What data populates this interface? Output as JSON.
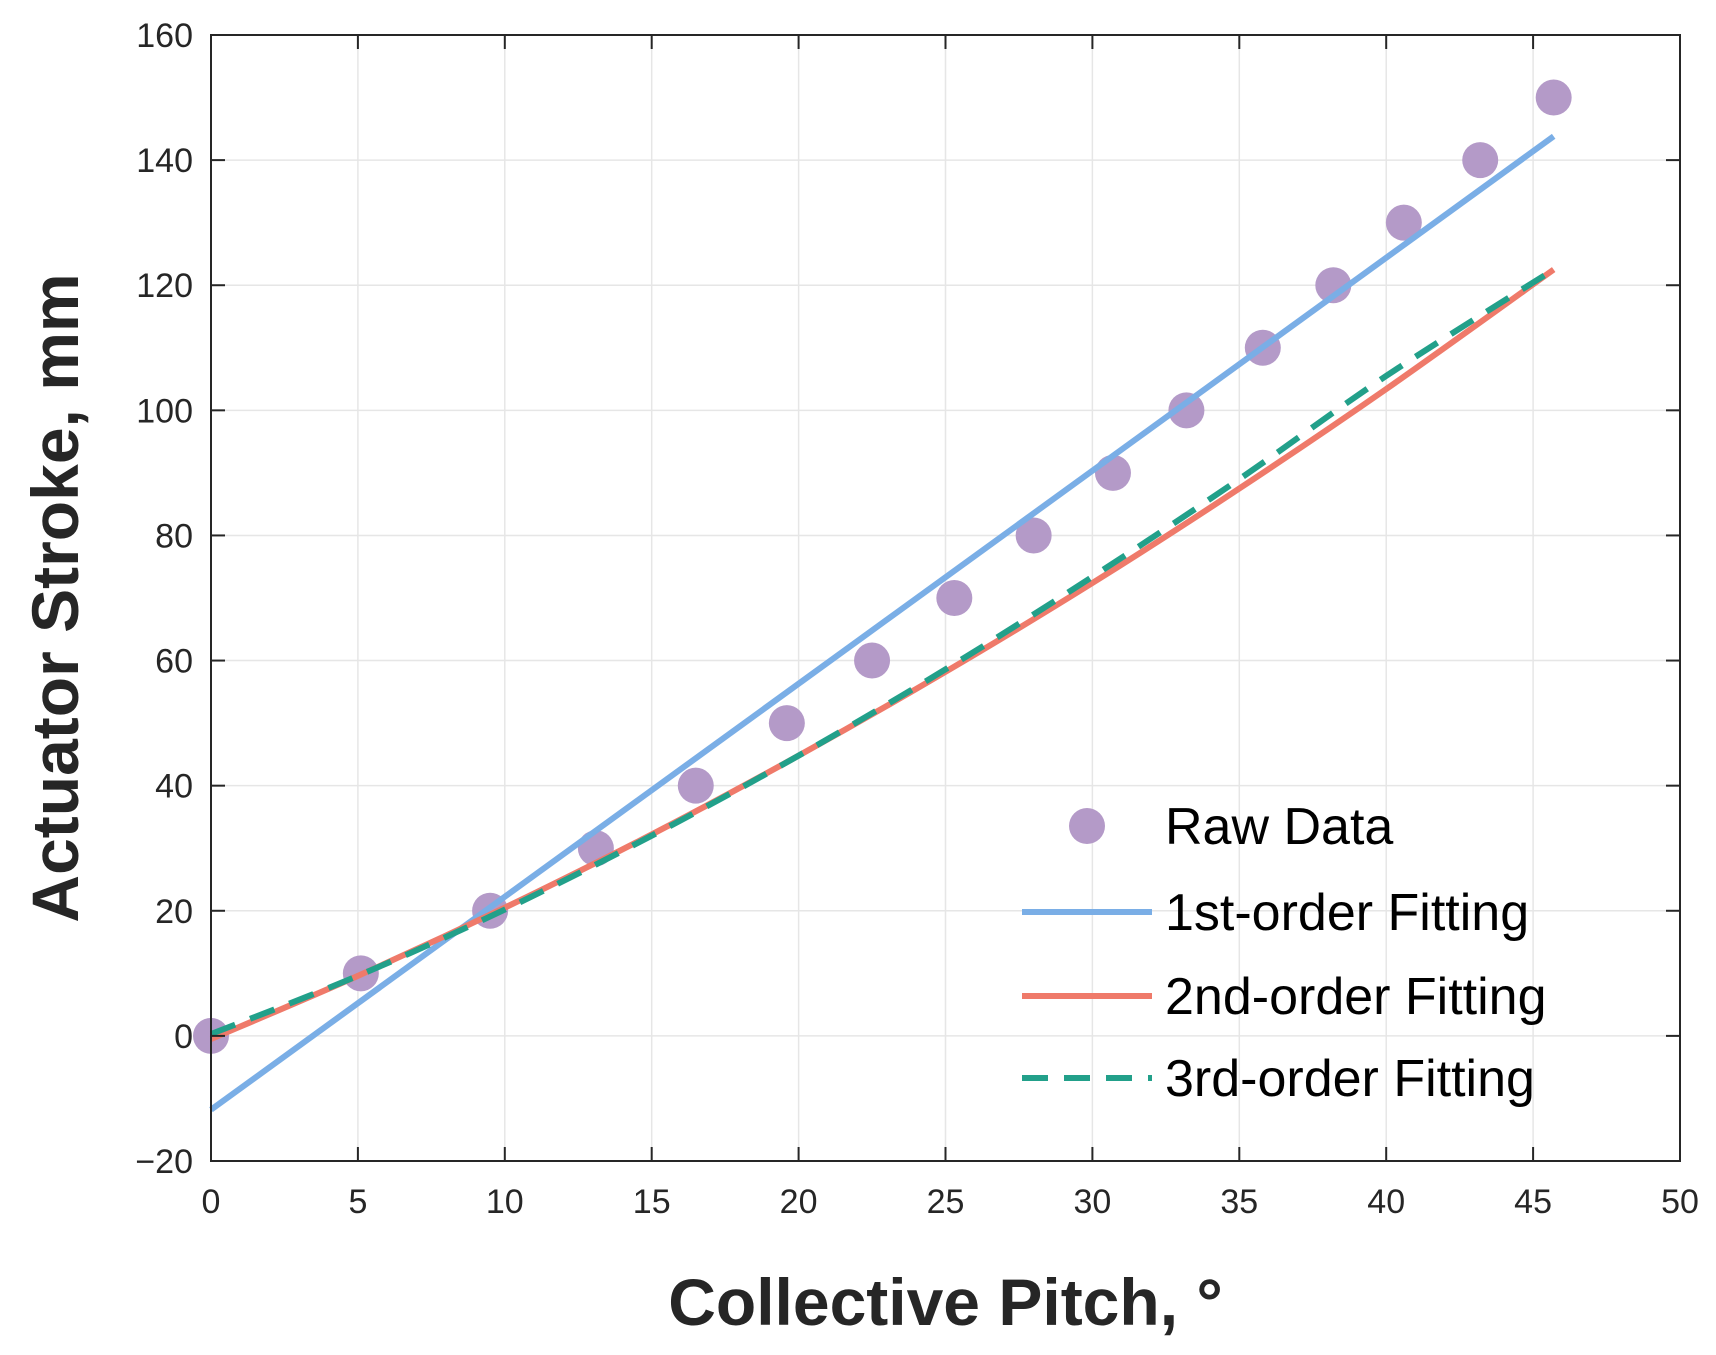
{
  "chart_data": {
    "type": "line",
    "title": "",
    "xlabel": "Collective Pitch, °",
    "ylabel": "Actuator Stroke, mm",
    "xlim": [
      0,
      50
    ],
    "ylim": [
      -20,
      160
    ],
    "xticks": [
      0,
      5,
      10,
      15,
      20,
      25,
      30,
      35,
      40,
      45,
      50
    ],
    "yticks": [
      -20,
      0,
      20,
      40,
      60,
      80,
      100,
      120,
      140,
      160
    ],
    "xtick_labels": [
      "0",
      "5",
      "10",
      "15",
      "20",
      "25",
      "30",
      "35",
      "40",
      "45",
      "50"
    ],
    "ytick_labels": [
      "−20",
      "0",
      "20",
      "40",
      "60",
      "80",
      "100",
      "120",
      "140",
      "160"
    ],
    "grid": true,
    "legend_position": "bottom-right",
    "series": [
      {
        "name": "Raw Data",
        "kind": "scatter",
        "color": "#b49ac8",
        "x": [
          0,
          5.1,
          9.5,
          13.1,
          16.5,
          19.6,
          22.5,
          25.3,
          28.0,
          30.7,
          33.2,
          35.8,
          38.2,
          40.6,
          43.2,
          45.7
        ],
        "y": [
          0,
          10,
          20,
          30,
          40,
          50,
          60,
          70,
          80,
          90,
          100,
          110,
          120,
          130,
          140,
          150
        ]
      },
      {
        "name": "1st-order Fitting",
        "kind": "line",
        "color": "#7aaee6",
        "dash": "solid",
        "x": [
          0,
          45.7
        ],
        "y": [
          -11.8,
          143.8
        ]
      },
      {
        "name": "2nd-order Fitting",
        "kind": "line",
        "color": "#ef7a6a",
        "dash": "solid",
        "x": [
          0,
          5,
          10,
          15,
          20,
          25,
          30,
          35,
          40,
          45.7
        ],
        "y": [
          -0.5,
          9.6,
          20.5,
          32.2,
          44.8,
          58.2,
          72.4,
          87.5,
          103.4,
          122.5
        ]
      },
      {
        "name": "3rd-order Fitting",
        "kind": "line",
        "color": "#22a08a",
        "dash": "dashed",
        "x": [
          0,
          5,
          10,
          15,
          20,
          25,
          30,
          35,
          40,
          45.7
        ],
        "y": [
          0.3,
          9.6,
          20.2,
          32.0,
          44.8,
          58.6,
          73.4,
          89.0,
          105.5,
          122.5
        ]
      }
    ]
  }
}
